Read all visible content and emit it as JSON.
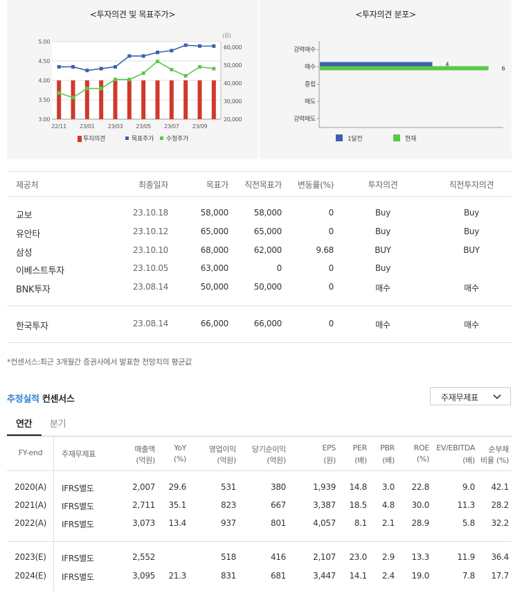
{
  "invest_chart": {
    "title": "<투자의견 및 목표주가>",
    "unit": "(원)",
    "legend": [
      {
        "label": "투자의견",
        "color": "#d0392b"
      },
      {
        "label": "목표주가",
        "color": "#3a62b0"
      },
      {
        "label": "수정주가",
        "color": "#5cc64a"
      }
    ]
  },
  "dist_chart": {
    "title": "<투자의견 분포>",
    "legend": [
      {
        "label": "1달전",
        "color": "#3a62b0"
      },
      {
        "label": "현재",
        "color": "#5cc64a"
      }
    ]
  },
  "chart_data": [
    {
      "type": "bar",
      "title": "<투자의견 및 목표주가>",
      "categories": [
        "22/11",
        "22/12",
        "23/01",
        "23/02",
        "23/03",
        "23/04",
        "23/05",
        "23/06",
        "23/07",
        "23/08",
        "23/09",
        "23/10"
      ],
      "x_tick_labels": [
        "22/11",
        "23/01",
        "23/03",
        "23/05",
        "23/07",
        "23/09"
      ],
      "left_axis": {
        "ticks": [
          "5.00",
          "4.50",
          "4.00",
          "3.50",
          "3.00"
        ],
        "ylim": [
          3.0,
          5.0
        ]
      },
      "right_axis": {
        "ticks": [
          "60,000",
          "50,000",
          "40,000",
          "30,000",
          "20,000"
        ],
        "ylim": [
          20000,
          63000
        ],
        "unit": "(원)"
      },
      "series": [
        {
          "name": "투자의견",
          "axis": "left",
          "kind": "bar",
          "values": [
            4,
            4,
            4,
            4,
            4,
            4,
            4,
            4,
            4,
            4,
            4,
            4
          ]
        },
        {
          "name": "목표주가",
          "axis": "right",
          "kind": "line",
          "values": [
            49000,
            49000,
            47000,
            48000,
            49000,
            55000,
            55000,
            57000,
            58000,
            61000,
            60500,
            60500
          ]
        },
        {
          "name": "수정주가",
          "axis": "right",
          "kind": "line",
          "values": [
            34500,
            32000,
            37000,
            37000,
            42000,
            42000,
            45500,
            52000,
            47500,
            44000,
            49000,
            48000
          ]
        }
      ],
      "grid": true,
      "legend_position": "bottom"
    },
    {
      "type": "bar",
      "title": "<투자의견 분포>",
      "orientation": "horizontal",
      "categories": [
        "강력매수",
        "매수",
        "중립",
        "매도",
        "강력매도"
      ],
      "series": [
        {
          "name": "1달전",
          "values": [
            0,
            4,
            0,
            0,
            0
          ]
        },
        {
          "name": "현재",
          "values": [
            0,
            6,
            0,
            0,
            0
          ]
        }
      ],
      "data_labels": {
        "1달전": "4",
        "현재": "6"
      },
      "legend_position": "bottom"
    }
  ],
  "opinion_table": {
    "headers": [
      "제공처",
      "최종일자",
      "목표가",
      "직전목표가",
      "변동률(%)",
      "투자의견",
      "직전투자의견"
    ],
    "rows": [
      [
        "교보",
        "23.10.18",
        "58,000",
        "58,000",
        "0",
        "Buy",
        "Buy"
      ],
      [
        "유안타",
        "23.10.12",
        "65,000",
        "65,000",
        "0",
        "Buy",
        "Buy"
      ],
      [
        "삼성",
        "23.10.10",
        "68,000",
        "62,000",
        "9.68",
        "BUY",
        "BUY"
      ],
      [
        "이베스트투자",
        "23.10.05",
        "63,000",
        "0",
        "0",
        "Buy",
        ""
      ],
      [
        "BNK투자",
        "23.08.14",
        "50,000",
        "50,000",
        "0",
        "매수",
        "매수"
      ],
      [
        "한국투자",
        "23.08.14",
        "66,000",
        "66,000",
        "0",
        "매수",
        "매수"
      ]
    ]
  },
  "note": "*컨센서스:최근 3개월간 증권사에서 발표한 전망치의 평균값",
  "consensus": {
    "title_highlight": "추정실적",
    "title_rest": " 컨센서스",
    "dropdown_value": "주재무제표",
    "tabs": [
      "연간",
      "분기"
    ]
  },
  "fin_table": {
    "headers": [
      [
        "FY-end",
        ""
      ],
      [
        "주재무제표",
        ""
      ],
      [
        "매출액",
        "(억원)"
      ],
      [
        "YoY",
        "(%)"
      ],
      [
        "영업이익",
        "(억원)"
      ],
      [
        "당기순이익",
        "(억원)"
      ],
      [
        "EPS",
        "(원)"
      ],
      [
        "PER",
        "(배)"
      ],
      [
        "PBR",
        "(배)"
      ],
      [
        "ROE",
        "(%)"
      ],
      [
        "EV/EBITDA",
        "(배)"
      ],
      [
        "순부채",
        "비율 (%)"
      ]
    ],
    "rows": [
      [
        "2020(A)",
        "IFRS별도",
        "2,007",
        "29.6",
        "531",
        "380",
        "1,939",
        "14.8",
        "3.0",
        "22.8",
        "9.0",
        "42.1"
      ],
      [
        "2021(A)",
        "IFRS별도",
        "2,711",
        "35.1",
        "823",
        "667",
        "3,387",
        "18.5",
        "4.8",
        "30.0",
        "11.3",
        "28.2"
      ],
      [
        "2022(A)",
        "IFRS별도",
        "3,073",
        "13.4",
        "937",
        "801",
        "4,057",
        "8.1",
        "2.1",
        "28.9",
        "5.8",
        "32.2"
      ],
      [
        "2023(E)",
        "IFRS별도",
        "2,552",
        "",
        "518",
        "416",
        "2,107",
        "23.0",
        "2.9",
        "13.3",
        "11.9",
        "36.4"
      ],
      [
        "2024(E)",
        "IFRS별도",
        "3,095",
        "21.3",
        "831",
        "681",
        "3,447",
        "14.1",
        "2.4",
        "19.0",
        "7.8",
        "17.7"
      ]
    ]
  }
}
